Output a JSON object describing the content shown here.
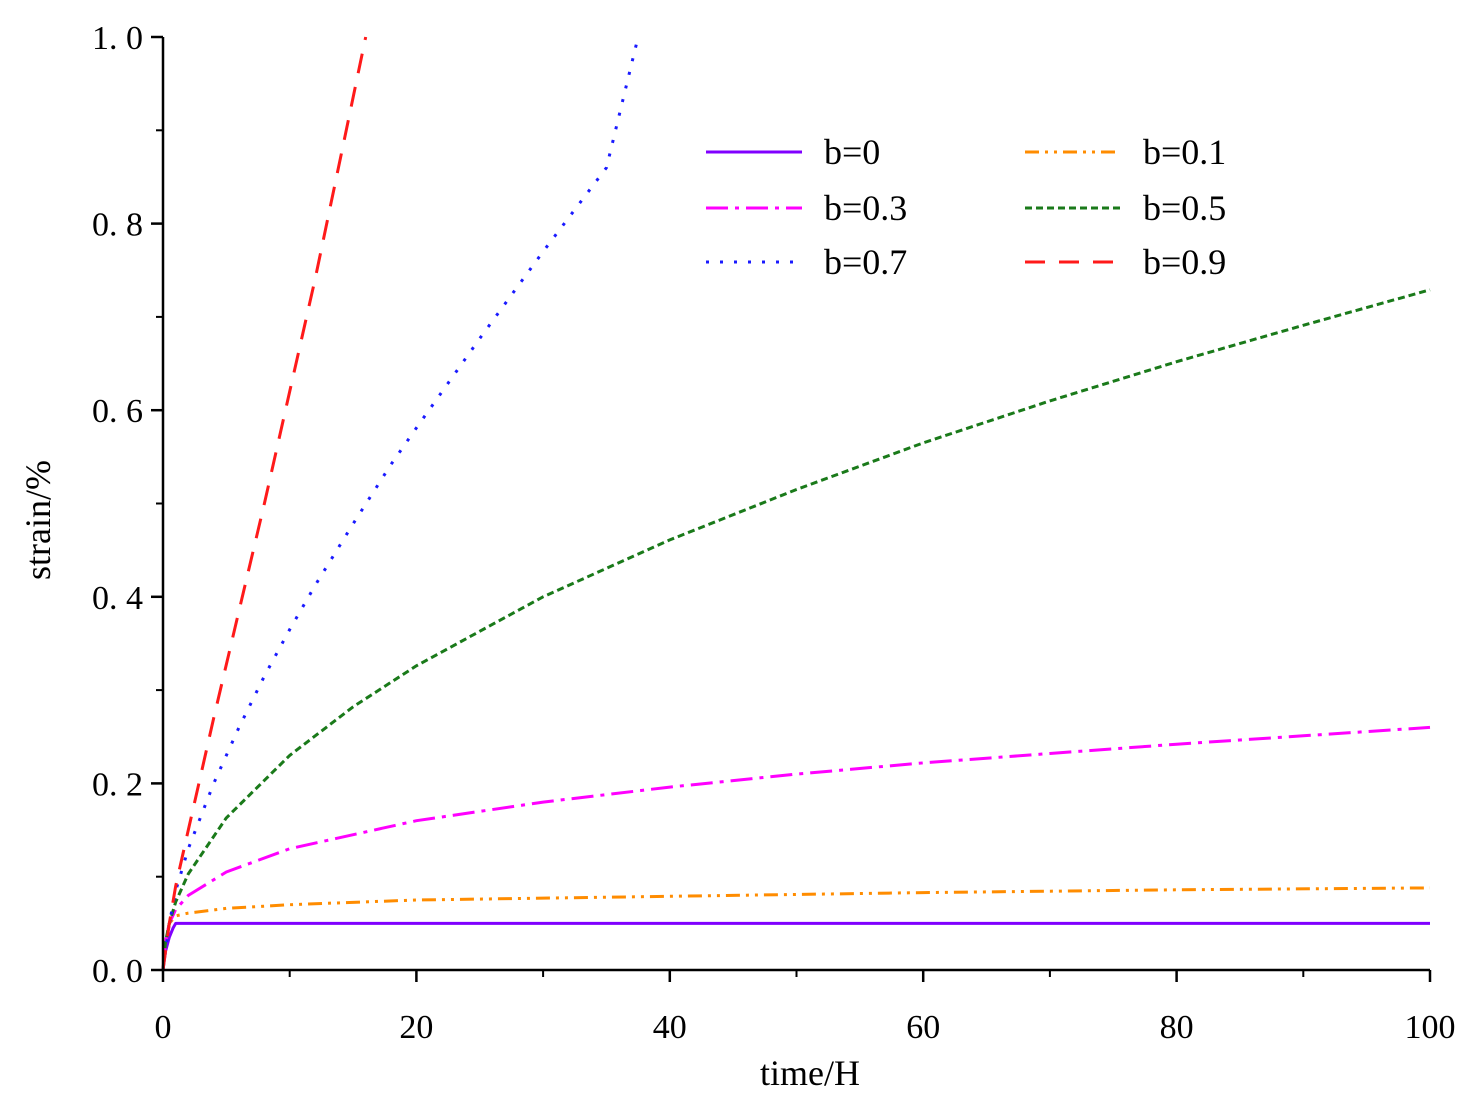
{
  "chart_data": {
    "type": "line",
    "title": "",
    "xlabel": "time/H",
    "ylabel": "strain/%",
    "xlim": [
      0,
      100
    ],
    "ylim": [
      0,
      1.0
    ],
    "x_ticks": [
      0,
      20,
      40,
      60,
      80,
      100
    ],
    "x_tick_labels": [
      "0",
      "20",
      "40",
      "60",
      "80",
      "100"
    ],
    "y_ticks": [
      0,
      0.2,
      0.4,
      0.6,
      0.8,
      1.0
    ],
    "y_tick_labels": [
      "0. 0",
      "0. 2",
      "0. 4",
      "0. 6",
      "0. 8",
      "1. 0"
    ],
    "grid": false,
    "legend_position": "top-right",
    "series": [
      {
        "name": "b=0",
        "color": "#8000ff",
        "style": "solid",
        "x": [
          0,
          0.2,
          0.5,
          0.8,
          1,
          2,
          5,
          10,
          20,
          40,
          60,
          80,
          100
        ],
        "y": [
          0,
          0.02,
          0.035,
          0.045,
          0.05,
          0.05,
          0.05,
          0.05,
          0.05,
          0.05,
          0.05,
          0.05,
          0.05
        ]
      },
      {
        "name": "b=0.1",
        "color": "#ff8c00",
        "style": "dashdotdot",
        "x": [
          0,
          0.2,
          0.5,
          1,
          2,
          5,
          10,
          20,
          40,
          60,
          80,
          100
        ],
        "y": [
          0,
          0.03,
          0.05,
          0.058,
          0.061,
          0.066,
          0.07,
          0.075,
          0.079,
          0.083,
          0.086,
          0.088
        ]
      },
      {
        "name": "b=0.3",
        "color": "#ff00ff",
        "style": "dashdot",
        "x": [
          0,
          0.2,
          0.5,
          1,
          2,
          5,
          10,
          20,
          30,
          40,
          50,
          60,
          70,
          80,
          90,
          100
        ],
        "y": [
          0,
          0.03,
          0.05,
          0.065,
          0.08,
          0.105,
          0.13,
          0.16,
          0.18,
          0.196,
          0.21,
          0.222,
          0.232,
          0.242,
          0.251,
          0.26
        ]
      },
      {
        "name": "b=0.5",
        "color": "#1a7a1a",
        "style": "shortdash",
        "x": [
          0,
          0.2,
          0.5,
          1,
          2,
          5,
          10,
          15,
          20,
          30,
          40,
          50,
          60,
          70,
          80,
          90,
          100
        ],
        "y": [
          0,
          0.03,
          0.05,
          0.073,
          0.103,
          0.163,
          0.23,
          0.282,
          0.326,
          0.4,
          0.461,
          0.515,
          0.565,
          0.61,
          0.652,
          0.691,
          0.729
        ]
      },
      {
        "name": "b=0.7",
        "color": "#1a1aff",
        "style": "dotted",
        "x": [
          0,
          0.5,
          1,
          2,
          4,
          6,
          8,
          10,
          12,
          15,
          18,
          20,
          25,
          30,
          35,
          37.5
        ],
        "y": [
          0,
          0.05,
          0.085,
          0.13,
          0.2,
          0.26,
          0.315,
          0.365,
          0.412,
          0.478,
          0.542,
          0.581,
          0.677,
          0.77,
          0.86,
          1.0
        ]
      },
      {
        "name": "b=0.9",
        "color": "#ff1a1a",
        "style": "longdash",
        "x": [
          0,
          0.5,
          1,
          2,
          3,
          4,
          6,
          8,
          10,
          12,
          14,
          16
        ],
        "y": [
          0,
          0.05,
          0.09,
          0.15,
          0.21,
          0.27,
          0.385,
          0.5,
          0.62,
          0.74,
          0.87,
          1.0
        ]
      }
    ]
  }
}
